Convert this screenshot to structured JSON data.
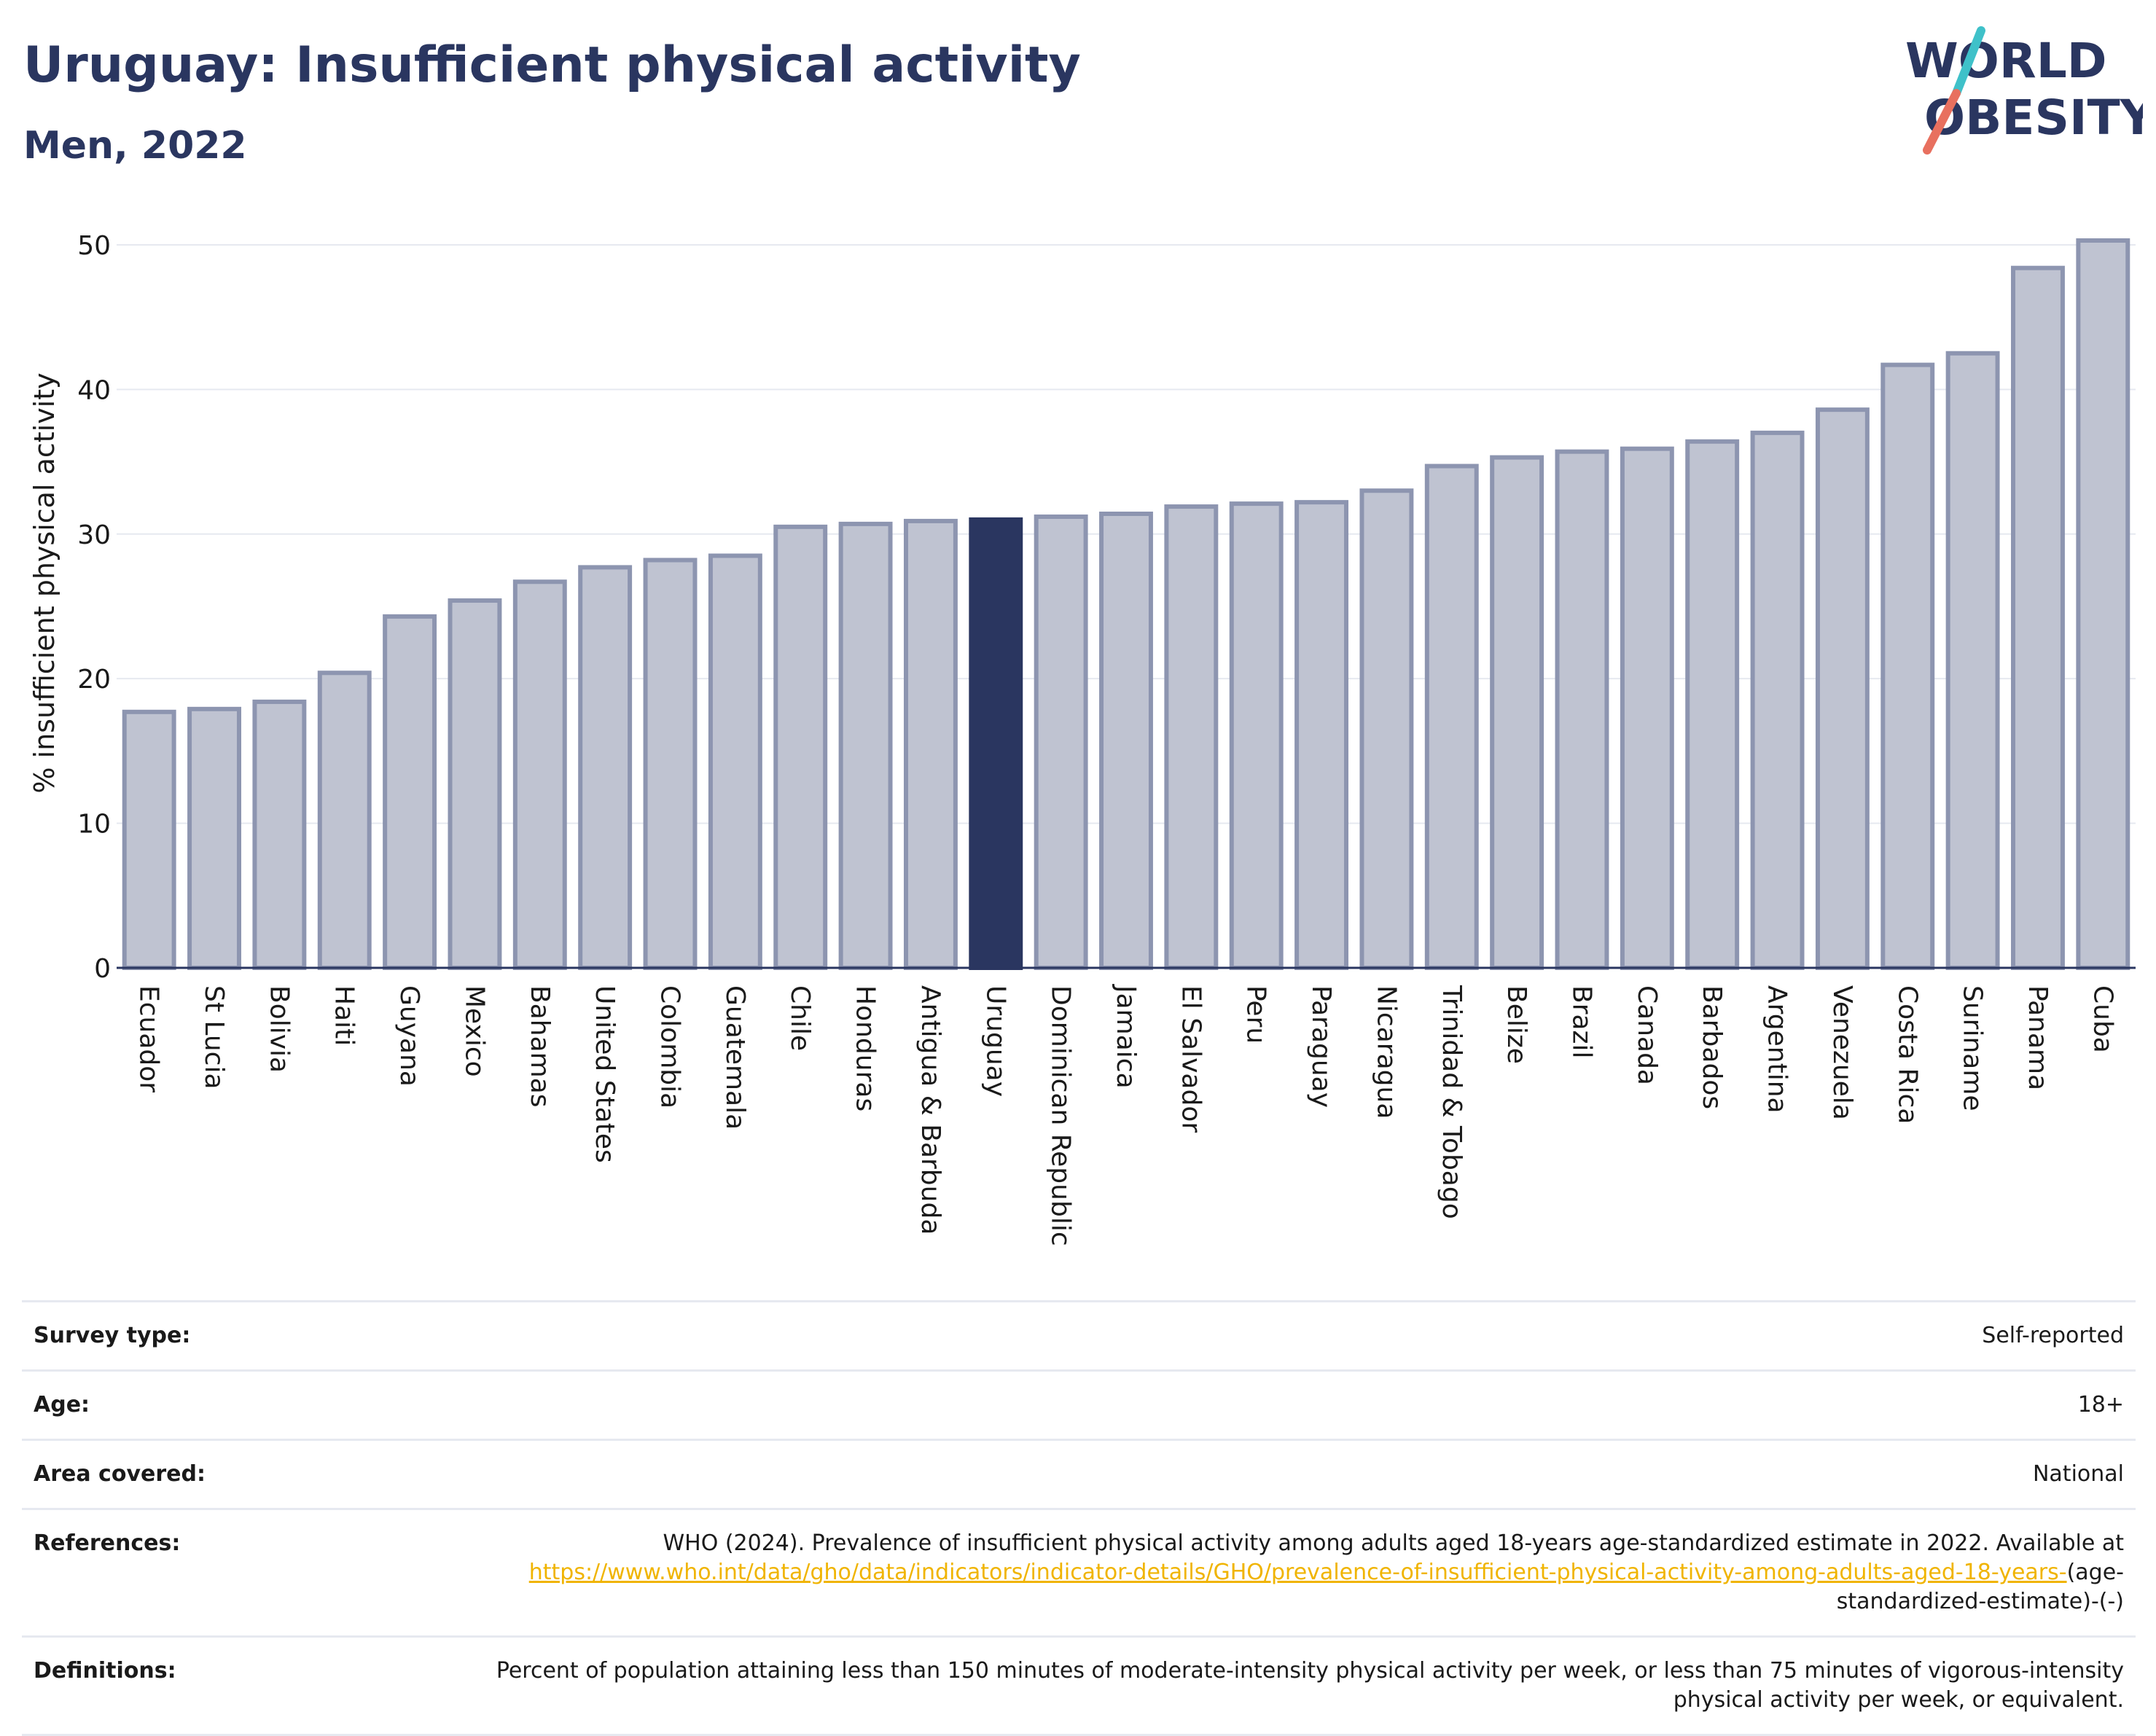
{
  "header": {
    "title": "Uruguay: Insufficient physical activity",
    "subtitle": "Men, 2022",
    "logo_line1": "WORLD",
    "logo_line2": "OBESITY"
  },
  "colors": {
    "title": "#2a3660",
    "bar_default_fill": "#bfc3d1",
    "bar_default_stroke": "#8d95b0",
    "bar_highlight": "#2a3660",
    "logo_slash_teal": "#3fc1c9",
    "logo_slash_coral": "#e8705f",
    "link": "#f0b400"
  },
  "chart_data": {
    "type": "bar",
    "title": "Uruguay: Insufficient physical activity",
    "subtitle": "Men, 2022",
    "ylabel": "% insufficient physical activity",
    "xlabel": "",
    "ylim": [
      0,
      50
    ],
    "yticks": [
      0,
      10,
      20,
      30,
      40,
      50
    ],
    "grid": true,
    "highlight": "Uruguay",
    "categories": [
      "Ecuador",
      "St Lucia",
      "Bolivia",
      "Haiti",
      "Guyana",
      "Mexico",
      "Bahamas",
      "United States",
      "Colombia",
      "Guatemala",
      "Chile",
      "Honduras",
      "Antigua & Barbuda",
      "Uruguay",
      "Dominican Republic",
      "Jamaica",
      "El Salvador",
      "Peru",
      "Paraguay",
      "Nicaragua",
      "Trinidad & Tobago",
      "Belize",
      "Brazil",
      "Canada",
      "Barbados",
      "Argentina",
      "Venezuela",
      "Costa Rica",
      "Suriname",
      "Panama",
      "Cuba"
    ],
    "values": [
      17.7,
      17.9,
      18.4,
      20.4,
      24.3,
      25.4,
      26.7,
      27.7,
      28.2,
      28.5,
      30.5,
      30.7,
      30.9,
      31.0,
      31.2,
      31.4,
      31.9,
      32.1,
      32.2,
      33.0,
      34.7,
      35.3,
      35.7,
      35.9,
      36.4,
      37.0,
      38.6,
      41.7,
      42.5,
      48.4,
      50.3
    ]
  },
  "meta": {
    "survey_type_label": "Survey type:",
    "survey_type_value": "Self-reported",
    "age_label": "Age:",
    "age_value": "18+",
    "area_label": "Area covered:",
    "area_value": "National",
    "references_label": "References:",
    "references_text": "WHO (2024). Prevalence of insufficient physical activity among adults aged 18-years age-standardized estimate in 2022. Available at",
    "references_link": "https://www.who.int/data/gho/data/indicators/indicator-details/GHO/prevalence-of-insufficient-physical-activity-among-adults-aged-18-years-",
    "references_suffix": "(age-standardized-estimate)-(-)",
    "definitions_label": "Definitions:",
    "definitions_text": "Percent of population attaining less than 150 minutes of moderate-intensity physical activity per week, or less than 75 minutes of vigorous-intensity physical activity per week, or equivalent."
  }
}
